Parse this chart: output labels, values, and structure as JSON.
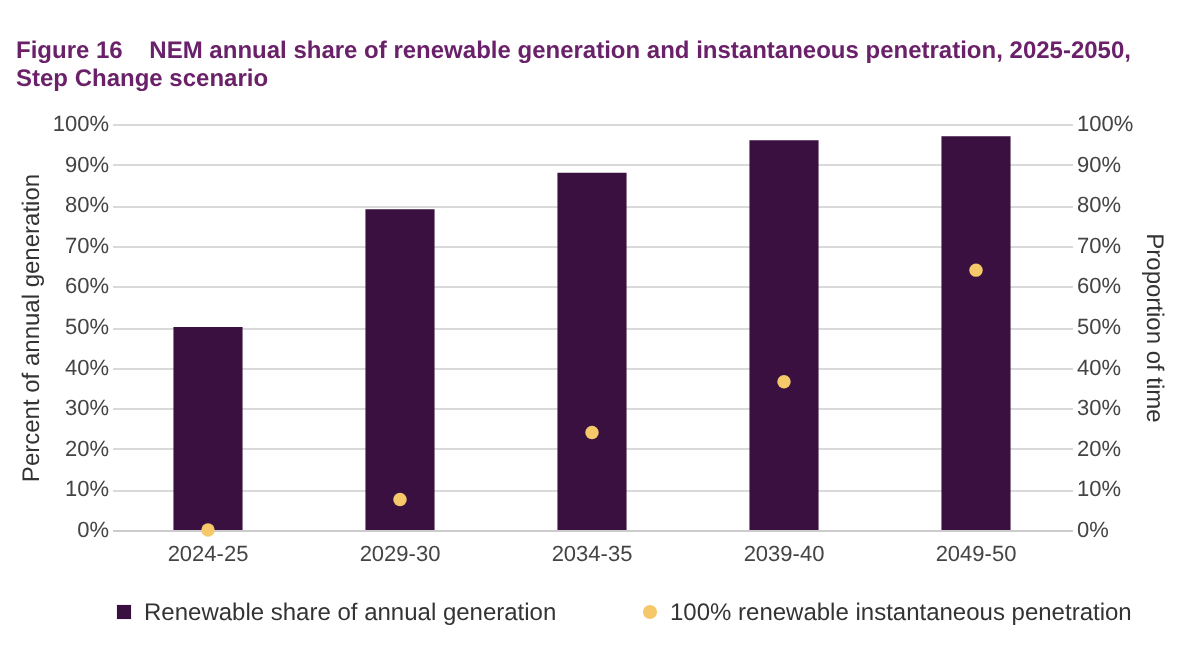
{
  "chart_data": {
    "type": "bar",
    "title": "Figure 16    NEM annual share of renewable generation and instantaneous penetration, 2025-2050, Step Change scenario",
    "categories": [
      "2024-25",
      "2029-30",
      "2034-35",
      "2039-40",
      "2049-50"
    ],
    "series": [
      {
        "name": "Renewable share of annual generation",
        "color": "#3a1040",
        "values": [
          50,
          79,
          88,
          96,
          97
        ]
      },
      {
        "name": "100% renewable instantaneous penetration",
        "type": "scatter",
        "axis": "y2",
        "color": "#f5c96a",
        "values": [
          0,
          7.5,
          24,
          36.5,
          64
        ]
      }
    ],
    "ylabel": "Percent of annual generation",
    "y2label": "Proportion of time",
    "ylim": [
      0,
      100
    ],
    "yticks": [
      {
        "value": 0,
        "label": "0%"
      },
      {
        "value": 10,
        "label": "10%"
      },
      {
        "value": 20,
        "label": "20%"
      },
      {
        "value": 30,
        "label": "30%"
      },
      {
        "value": 40,
        "label": "40%"
      },
      {
        "value": 50,
        "label": "50%"
      },
      {
        "value": 60,
        "label": "60%"
      },
      {
        "value": 70,
        "label": "70%"
      },
      {
        "value": 80,
        "label": "80%"
      },
      {
        "value": 90,
        "label": "90%"
      },
      {
        "value": 100,
        "label": "100%"
      }
    ],
    "y2lim": [
      0,
      100
    ],
    "y2ticks": [
      {
        "value": 0,
        "label": "0%"
      },
      {
        "value": 10,
        "label": "10%"
      },
      {
        "value": 20,
        "label": "20%"
      },
      {
        "value": 30,
        "label": "30%"
      },
      {
        "value": 40,
        "label": "40%"
      },
      {
        "value": 50,
        "label": "50%"
      },
      {
        "value": 60,
        "label": "60%"
      },
      {
        "value": 70,
        "label": "70%"
      },
      {
        "value": 80,
        "label": "80%"
      },
      {
        "value": 90,
        "label": "90%"
      },
      {
        "value": 100,
        "label": "100%"
      }
    ],
    "grid": "y",
    "legend": "bottom",
    "marker": "circle"
  }
}
